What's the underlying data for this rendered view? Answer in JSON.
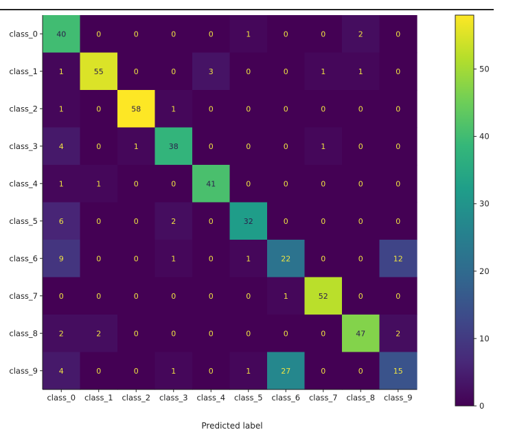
{
  "chart_data": {
    "type": "heatmap",
    "title": "",
    "xlabel": "Predicted label",
    "ylabel": "",
    "x_categories": [
      "class_0",
      "class_1",
      "class_2",
      "class_3",
      "class_4",
      "class_5",
      "class_6",
      "class_7",
      "class_8",
      "class_9"
    ],
    "y_categories": [
      "class_0",
      "class_1",
      "class_2",
      "class_3",
      "class_4",
      "class_5",
      "class_6",
      "class_7",
      "class_8",
      "class_9"
    ],
    "matrix": [
      [
        40,
        0,
        0,
        0,
        0,
        1,
        0,
        0,
        2,
        0
      ],
      [
        1,
        55,
        0,
        0,
        3,
        0,
        0,
        1,
        1,
        0
      ],
      [
        1,
        0,
        58,
        1,
        0,
        0,
        0,
        0,
        0,
        0
      ],
      [
        4,
        0,
        1,
        38,
        0,
        0,
        0,
        1,
        0,
        0
      ],
      [
        1,
        1,
        0,
        0,
        41,
        0,
        0,
        0,
        0,
        0
      ],
      [
        6,
        0,
        0,
        2,
        0,
        32,
        0,
        0,
        0,
        0
      ],
      [
        9,
        0,
        0,
        1,
        0,
        1,
        22,
        0,
        0,
        12
      ],
      [
        0,
        0,
        0,
        0,
        0,
        0,
        1,
        52,
        0,
        0
      ],
      [
        2,
        2,
        0,
        0,
        0,
        0,
        0,
        0,
        47,
        2
      ],
      [
        4,
        0,
        0,
        1,
        0,
        1,
        27,
        0,
        0,
        15
      ]
    ],
    "colormap": "viridis",
    "value_range": [
      0,
      58
    ],
    "colorbar": {
      "ticks": [
        0,
        10,
        20,
        30,
        40,
        50
      ],
      "tick_labels": [
        "0",
        "10",
        "20",
        "30",
        "40",
        "50"
      ]
    },
    "grid": false,
    "label_colors": {
      "on_dark": "#f0e442",
      "on_light": "#2b1d4a"
    }
  }
}
